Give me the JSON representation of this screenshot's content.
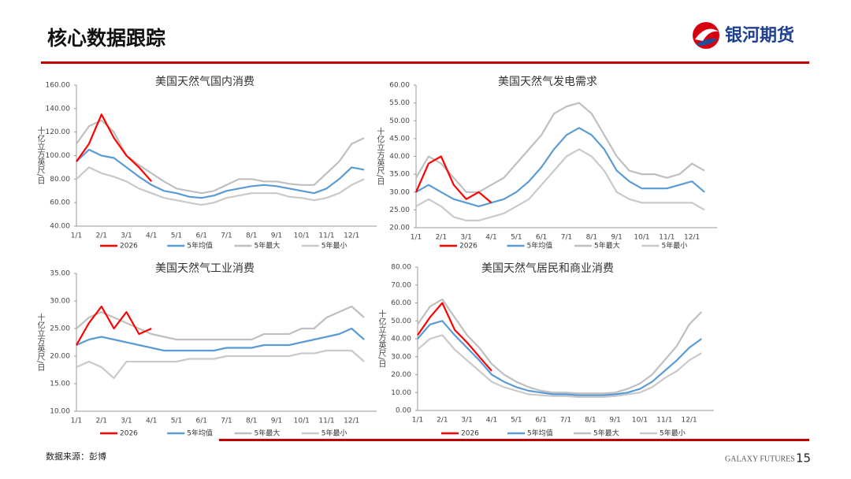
{
  "header": {
    "title": "核心数据跟踪",
    "logo": "银河期货"
  },
  "footer": {
    "source": "数据来源：彭博",
    "brand": "GALAXY FUTURES",
    "page": "15"
  },
  "chart_data": [
    {
      "type": "line",
      "title": "美国天然气国内消费",
      "y_label": "十亿立方英尺/日",
      "categories": [
        "1/1",
        null,
        "2/1",
        null,
        "3/1",
        null,
        "4/1",
        null,
        "5/1",
        null,
        "6/1",
        null,
        "7/1",
        null,
        "8/1",
        null,
        "9/1",
        null,
        "10/1",
        null,
        "11/1",
        null,
        "12/1",
        null
      ],
      "ylim": [
        40,
        160
      ],
      "yticks": [
        {
          "value": 40,
          "label": "40.00"
        },
        {
          "value": 60,
          "label": "60.00"
        },
        {
          "value": 80,
          "label": "80.00"
        },
        {
          "value": 100,
          "label": "100.00"
        },
        {
          "value": 120,
          "label": "120.00"
        },
        {
          "value": 140,
          "label": "140.00"
        },
        {
          "value": 160,
          "label": "160.00"
        }
      ],
      "series": [
        {
          "name": "2026",
          "color": "#ff0000",
          "values": [
            95,
            110,
            135,
            115,
            100,
            90,
            78,
            null,
            null,
            null,
            null,
            null,
            null,
            null,
            null,
            null,
            null,
            null,
            null,
            null,
            null,
            null,
            null,
            null
          ]
        },
        {
          "name": "5年均值",
          "color": "#5b9bd5",
          "values": [
            95,
            105,
            100,
            98,
            90,
            82,
            75,
            70,
            68,
            65,
            64,
            66,
            70,
            72,
            74,
            75,
            74,
            72,
            70,
            68,
            72,
            80,
            90,
            88
          ]
        },
        {
          "name": "5年最大",
          "color": "#bfbfbf",
          "values": [
            110,
            125,
            130,
            120,
            100,
            92,
            85,
            78,
            72,
            70,
            68,
            70,
            75,
            80,
            80,
            78,
            78,
            76,
            75,
            75,
            85,
            95,
            110,
            115
          ]
        },
        {
          "name": "5年最小",
          "color": "#c9c9c9",
          "values": [
            80,
            90,
            85,
            82,
            78,
            72,
            68,
            64,
            62,
            60,
            58,
            60,
            64,
            66,
            68,
            68,
            68,
            65,
            64,
            62,
            64,
            68,
            75,
            80
          ]
        }
      ]
    },
    {
      "type": "line",
      "title": "美国天然气发电需求",
      "y_label": "十亿立方英尺/日",
      "categories": [
        "1/1",
        null,
        "2/1",
        null,
        "3/1",
        null,
        "4/1",
        null,
        "5/1",
        null,
        "6/1",
        null,
        "7/1",
        null,
        "8/1",
        null,
        "9/1",
        null,
        "10/1",
        null,
        "11/1",
        null,
        "12/1",
        null
      ],
      "ylim": [
        20,
        60
      ],
      "yticks": [
        {
          "value": 20,
          "label": "20.00"
        },
        {
          "value": 25,
          "label": "25.00"
        },
        {
          "value": 30,
          "label": "30.00"
        },
        {
          "value": 35,
          "label": "35.00"
        },
        {
          "value": 40,
          "label": "40.00"
        },
        {
          "value": 45,
          "label": "45.00"
        },
        {
          "value": 50,
          "label": "50.00"
        },
        {
          "value": 55,
          "label": "55.00"
        },
        {
          "value": 60,
          "label": "60.00"
        }
      ],
      "series": [
        {
          "name": "2026",
          "color": "#ff0000",
          "values": [
            30,
            38,
            40,
            32,
            28,
            30,
            27,
            null,
            null,
            null,
            null,
            null,
            null,
            null,
            null,
            null,
            null,
            null,
            null,
            null,
            null,
            null,
            null,
            null
          ]
        },
        {
          "name": "5年均值",
          "color": "#5b9bd5",
          "values": [
            30,
            32,
            30,
            28,
            27,
            26,
            27,
            28,
            30,
            33,
            37,
            42,
            46,
            48,
            46,
            42,
            36,
            33,
            31,
            31,
            31,
            32,
            33,
            30
          ]
        },
        {
          "name": "5年最大",
          "color": "#bfbfbf",
          "values": [
            34,
            40,
            38,
            34,
            30,
            30,
            32,
            34,
            38,
            42,
            46,
            52,
            54,
            55,
            52,
            46,
            40,
            36,
            35,
            35,
            34,
            35,
            38,
            36
          ]
        },
        {
          "name": "5年最小",
          "color": "#c9c9c9",
          "values": [
            26,
            28,
            26,
            23,
            22,
            22,
            23,
            24,
            26,
            28,
            32,
            36,
            40,
            42,
            40,
            36,
            30,
            28,
            27,
            27,
            27,
            27,
            27,
            25
          ]
        }
      ]
    },
    {
      "type": "line",
      "title": "美国天然气工业消费",
      "y_label": "十亿立方英尺/日",
      "categories": [
        "1/1",
        null,
        "2/1",
        null,
        "3/1",
        null,
        "4/1",
        null,
        "5/1",
        null,
        "6/1",
        null,
        "7/1",
        null,
        "8/1",
        null,
        "9/1",
        null,
        "10/1",
        null,
        "11/1",
        null,
        "12/1",
        null
      ],
      "ylim": [
        10,
        35
      ],
      "yticks": [
        {
          "value": 10,
          "label": "10.00"
        },
        {
          "value": 15,
          "label": "15.00"
        },
        {
          "value": 20,
          "label": "20.00"
        },
        {
          "value": 25,
          "label": "25.00"
        },
        {
          "value": 30,
          "label": "30.00"
        },
        {
          "value": 35,
          "label": "35.00"
        }
      ],
      "series": [
        {
          "name": "2026",
          "color": "#ff0000",
          "values": [
            22,
            26,
            29,
            25,
            28,
            24,
            25,
            null,
            null,
            null,
            null,
            null,
            null,
            null,
            null,
            null,
            null,
            null,
            null,
            null,
            null,
            null,
            null,
            null
          ]
        },
        {
          "name": "5年均值",
          "color": "#5b9bd5",
          "values": [
            22,
            23,
            23.5,
            23,
            22.5,
            22,
            21.5,
            21,
            21,
            21,
            21,
            21,
            21.5,
            21.5,
            21.5,
            22,
            22,
            22,
            22.5,
            23,
            23.5,
            24,
            25,
            23
          ]
        },
        {
          "name": "5年最大",
          "color": "#bfbfbf",
          "values": [
            25,
            27,
            28,
            27,
            26,
            25,
            24,
            23.5,
            23,
            23,
            23,
            23,
            23,
            23,
            23,
            24,
            24,
            24,
            25,
            25,
            27,
            28,
            29,
            27
          ]
        },
        {
          "name": "5年最小",
          "color": "#c9c9c9",
          "values": [
            18,
            19,
            18,
            16,
            19,
            19,
            19,
            19,
            19,
            19.5,
            19.5,
            19.5,
            20,
            20,
            20,
            20,
            20,
            20,
            20.5,
            20.5,
            21,
            21,
            21,
            19
          ]
        }
      ]
    },
    {
      "type": "line",
      "title": "美国天然气居民和商业消费",
      "y_label": "十亿立方英尺/日",
      "categories": [
        "1/1",
        null,
        "2/1",
        null,
        "3/1",
        null,
        "4/1",
        null,
        "5/1",
        null,
        "6/1",
        null,
        "7/1",
        null,
        "8/1",
        null,
        "9/1",
        null,
        "10/1",
        null,
        "11/1",
        null,
        "12/1",
        null
      ],
      "ylim": [
        0,
        80
      ],
      "yticks": [
        {
          "value": 0,
          "label": "0.00"
        },
        {
          "value": 10,
          "label": "10.00"
        },
        {
          "value": 20,
          "label": "20.00"
        },
        {
          "value": 30,
          "label": "30.00"
        },
        {
          "value": 40,
          "label": "40.00"
        },
        {
          "value": 50,
          "label": "50.00"
        },
        {
          "value": 60,
          "label": "60.00"
        },
        {
          "value": 70,
          "label": "70.00"
        },
        {
          "value": 80,
          "label": "80.00"
        }
      ],
      "series": [
        {
          "name": "2026",
          "color": "#ff0000",
          "values": [
            42,
            52,
            60,
            45,
            38,
            30,
            22,
            null,
            null,
            null,
            null,
            null,
            null,
            null,
            null,
            null,
            null,
            null,
            null,
            null,
            null,
            null,
            null,
            null
          ]
        },
        {
          "name": "5年均值",
          "color": "#5b9bd5",
          "values": [
            40,
            48,
            50,
            42,
            35,
            28,
            20,
            16,
            13,
            11,
            10,
            9,
            9,
            8.5,
            8.5,
            8.5,
            9,
            10,
            12,
            16,
            22,
            28,
            35,
            40
          ]
        },
        {
          "name": "5年最大",
          "color": "#bfbfbf",
          "values": [
            48,
            58,
            62,
            52,
            42,
            35,
            26,
            20,
            16,
            13,
            11,
            10,
            10,
            9.5,
            9.5,
            9.5,
            10,
            12,
            15,
            20,
            28,
            36,
            48,
            55
          ]
        },
        {
          "name": "5年最小",
          "color": "#c9c9c9",
          "values": [
            34,
            40,
            42,
            34,
            28,
            22,
            16,
            13,
            11,
            9,
            8.5,
            8,
            8,
            7.5,
            7.5,
            7.5,
            8,
            9,
            10,
            13,
            18,
            22,
            28,
            32
          ]
        }
      ]
    }
  ]
}
